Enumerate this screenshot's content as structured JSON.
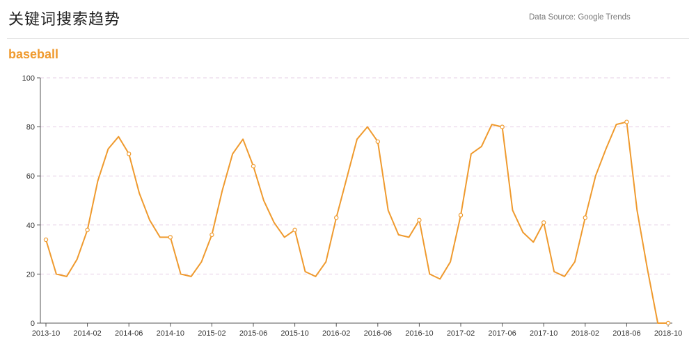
{
  "header": {
    "title": "关键词搜索趋势",
    "source": "Data Source: Google Trends"
  },
  "colors": {
    "series": "#ef9a2e",
    "grid": "#e6cfe6",
    "axis": "#555555"
  },
  "chart_data": {
    "type": "line",
    "title": "baseball",
    "xlabel": "",
    "ylabel": "",
    "ylim": [
      0,
      100
    ],
    "yticks": [
      0,
      20,
      40,
      60,
      80,
      100
    ],
    "grid": true,
    "x_tick_labels": [
      "2013-10",
      "2014-02",
      "2014-06",
      "2014-10",
      "2015-02",
      "2015-06",
      "2015-10",
      "2016-02",
      "2016-06",
      "2016-10",
      "2017-02",
      "2017-06",
      "2017-10",
      "2018-02",
      "2018-06",
      "2018-10"
    ],
    "x": [
      "2013-10",
      "2013-11",
      "2013-12",
      "2014-01",
      "2014-02",
      "2014-03",
      "2014-04",
      "2014-05",
      "2014-06",
      "2014-07",
      "2014-08",
      "2014-09",
      "2014-10",
      "2014-11",
      "2014-12",
      "2015-01",
      "2015-02",
      "2015-03",
      "2015-04",
      "2015-05",
      "2015-06",
      "2015-07",
      "2015-08",
      "2015-09",
      "2015-10",
      "2015-11",
      "2015-12",
      "2016-01",
      "2016-02",
      "2016-03",
      "2016-04",
      "2016-05",
      "2016-06",
      "2016-07",
      "2016-08",
      "2016-09",
      "2016-10",
      "2016-11",
      "2016-12",
      "2017-01",
      "2017-02",
      "2017-03",
      "2017-04",
      "2017-05",
      "2017-06",
      "2017-07",
      "2017-08",
      "2017-09",
      "2017-10",
      "2017-11",
      "2017-12",
      "2018-01",
      "2018-02",
      "2018-03",
      "2018-04",
      "2018-05",
      "2018-06",
      "2018-07",
      "2018-08",
      "2018-09",
      "2018-10"
    ],
    "series": [
      {
        "values": [
          34,
          20,
          19,
          26,
          38,
          58,
          71,
          76,
          69,
          53,
          42,
          35,
          35,
          20,
          19,
          25,
          36,
          54,
          69,
          75,
          64,
          50,
          41,
          35,
          38,
          21,
          19,
          25,
          43,
          59,
          75,
          80,
          74,
          46,
          36,
          35,
          42,
          20,
          18,
          25,
          44,
          69,
          72,
          81,
          80,
          46,
          37,
          33,
          41,
          21,
          19,
          25,
          43,
          60,
          71,
          81,
          82,
          46,
          22,
          0,
          0
        ]
      }
    ]
  }
}
